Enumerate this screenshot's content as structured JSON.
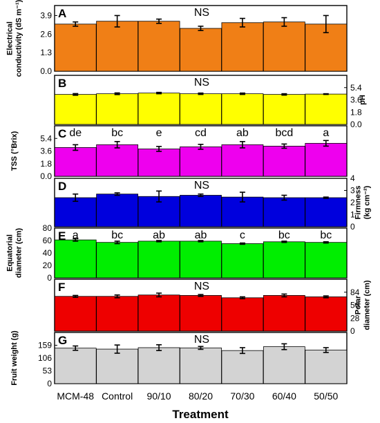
{
  "xlabel": "Treatment",
  "treatments": [
    "MCM-48",
    "Control",
    "90/10",
    "80/20",
    "70/30",
    "60/40",
    "50/50"
  ],
  "chart_data": [
    {
      "type": "bar",
      "panel": "A",
      "annotation": "NS",
      "ylabel_lines": [
        "Electrical",
        "conductivity (dS m⁻¹)"
      ],
      "axis_side": "left",
      "ylim": [
        0,
        4.6
      ],
      "ticks": [
        "0.0",
        "1.3",
        "2.6",
        "3.9"
      ],
      "tick_values": [
        0,
        1.3,
        2.6,
        3.9
      ],
      "color": "#f07f16",
      "values": [
        3.3,
        3.5,
        3.5,
        3.0,
        3.4,
        3.45,
        3.3
      ],
      "errors": [
        0.15,
        0.4,
        0.15,
        0.15,
        0.3,
        0.3,
        0.6
      ],
      "letters": []
    },
    {
      "type": "bar",
      "panel": "B",
      "annotation": "NS",
      "ylabel_lines": [
        "pH"
      ],
      "axis_side": "right",
      "ylim": [
        0,
        7.2
      ],
      "ticks": [
        "0.0",
        "1.8",
        "3.6",
        "5.4"
      ],
      "tick_values": [
        0,
        1.8,
        3.6,
        5.4
      ],
      "color": "#ffff00",
      "values": [
        4.4,
        4.5,
        4.6,
        4.5,
        4.5,
        4.4,
        4.45
      ],
      "errors": [
        0.12,
        0.12,
        0.1,
        0.1,
        0.1,
        0.1,
        0.05
      ],
      "letters": []
    },
    {
      "type": "bar",
      "panel": "C",
      "annotation": "",
      "ylabel_lines": [
        "TSS (°Brix)"
      ],
      "axis_side": "left",
      "ylim": [
        0,
        7.2
      ],
      "ticks": [
        "0.0",
        "1.8",
        "3.6",
        "5.4"
      ],
      "tick_values": [
        0,
        1.8,
        3.6,
        5.4
      ],
      "color": "#ee00ee",
      "values": [
        4.1,
        4.5,
        3.9,
        4.2,
        4.5,
        4.3,
        4.7
      ],
      "errors": [
        0.4,
        0.45,
        0.35,
        0.35,
        0.45,
        0.3,
        0.4
      ],
      "letters": [
        "de",
        "bc",
        "e",
        "cd",
        "ab",
        "bcd",
        "a"
      ]
    },
    {
      "type": "bar",
      "panel": "D",
      "annotation": "NS",
      "ylabel_lines": [
        "Firmness",
        "(kg cm⁻²)"
      ],
      "axis_side": "right",
      "ylim": [
        0,
        4
      ],
      "ticks": [
        "0",
        "1",
        "2",
        "3",
        "4"
      ],
      "tick_values": [
        0,
        1,
        2,
        3,
        4
      ],
      "color": "#0000dd",
      "values": [
        2.4,
        2.7,
        2.5,
        2.6,
        2.45,
        2.4,
        2.4
      ],
      "errors": [
        0.3,
        0.1,
        0.45,
        0.1,
        0.4,
        0.2,
        0.05
      ],
      "letters": []
    },
    {
      "type": "bar",
      "panel": "E",
      "annotation": "",
      "ylabel_lines": [
        "Equatorial",
        "diameter (cm)"
      ],
      "axis_side": "left",
      "ylim": [
        0,
        80
      ],
      "ticks": [
        "0",
        "20",
        "40",
        "60",
        "80"
      ],
      "tick_values": [
        0,
        20,
        40,
        60,
        80
      ],
      "color": "#00ee00",
      "values": [
        61,
        57,
        59,
        59,
        55,
        58,
        57
      ],
      "errors": [
        2,
        2,
        1,
        1,
        1,
        1,
        1
      ],
      "letters": [
        "a",
        "bc",
        "ab",
        "ab",
        "c",
        "bc",
        "bc"
      ]
    },
    {
      "type": "bar",
      "panel": "F",
      "annotation": "NS",
      "ylabel_lines": [
        "Polar",
        "diameter (cm)"
      ],
      "axis_side": "right",
      "ylim": [
        0,
        112
      ],
      "ticks": [
        "0",
        "28",
        "56",
        "84"
      ],
      "tick_values": [
        0,
        28,
        56,
        84
      ],
      "color": "#ee0000",
      "values": [
        75,
        75,
        78,
        77,
        72,
        77,
        74
      ],
      "errors": [
        2,
        3,
        4,
        2,
        2,
        3,
        2
      ],
      "letters": []
    },
    {
      "type": "bar",
      "panel": "G",
      "annotation": "NS",
      "ylabel_lines": [
        "Fruit weight (g)"
      ],
      "axis_side": "left",
      "ylim": [
        0,
        212
      ],
      "ticks": [
        "0",
        "53",
        "106",
        "159"
      ],
      "tick_values": [
        0,
        53,
        106,
        159
      ],
      "color": "#d3d3d3",
      "values": [
        147,
        143,
        149,
        148,
        137,
        153,
        139
      ],
      "errors": [
        9,
        17,
        12,
        6,
        12,
        12,
        10
      ],
      "letters": []
    }
  ]
}
